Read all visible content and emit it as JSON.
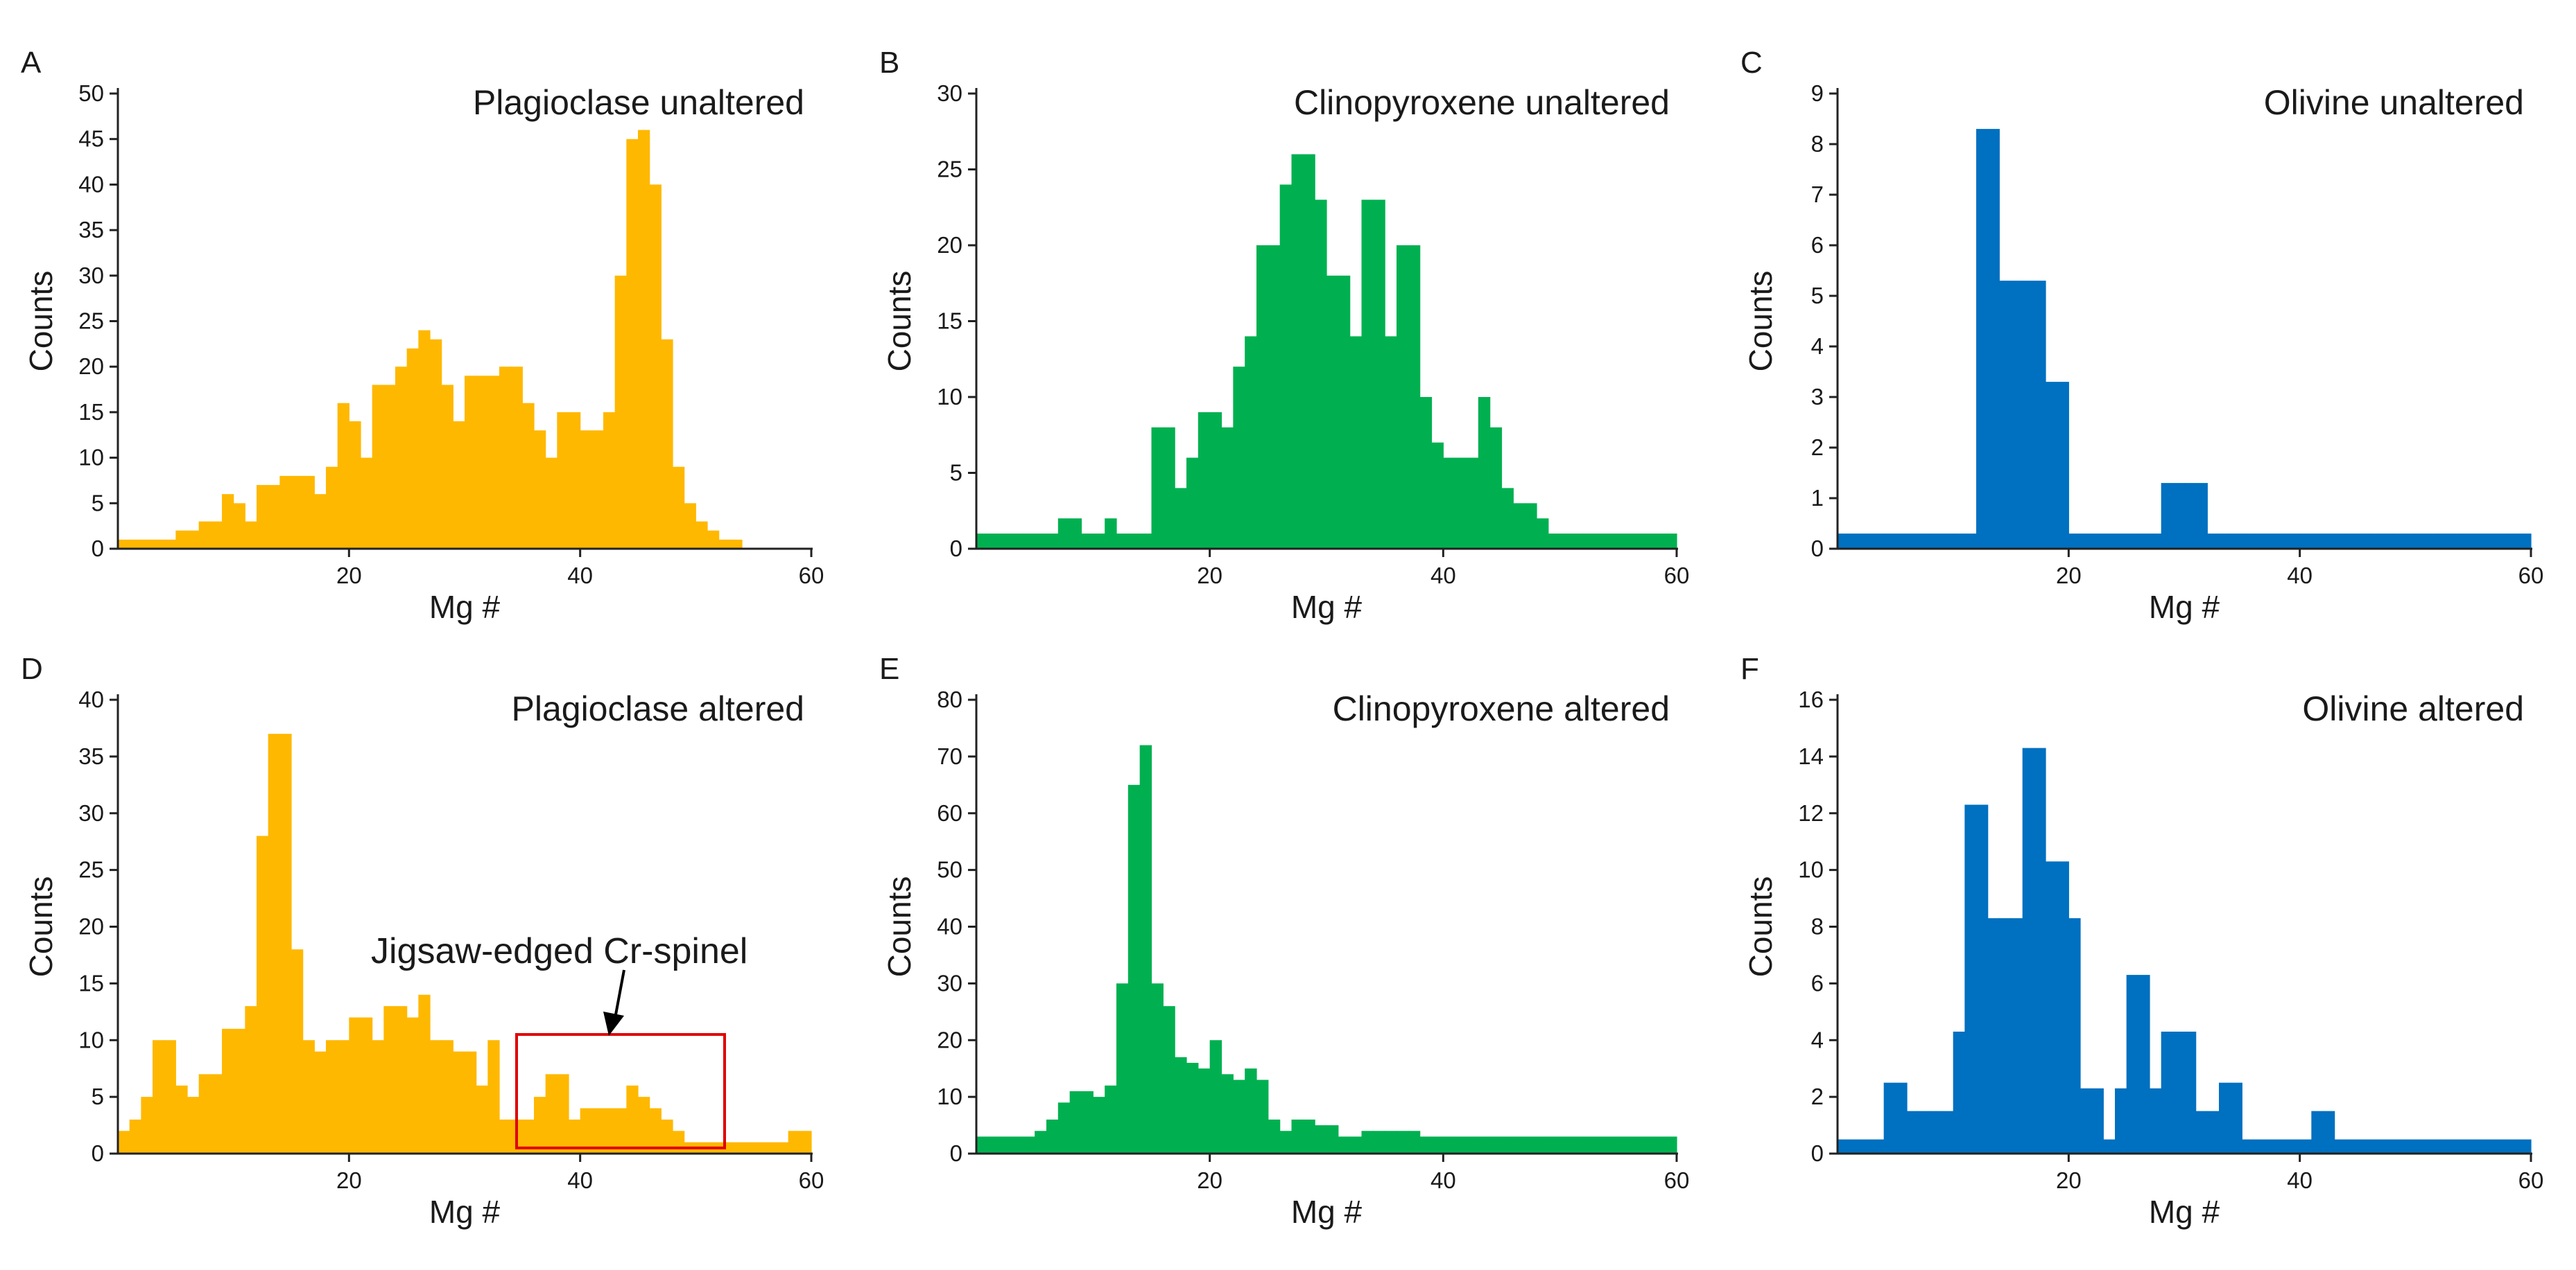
{
  "chart_data": [
    {
      "type": "bar",
      "panel": "A",
      "title": "Plagioclase unaltered",
      "xlabel": "Mg #",
      "ylabel": "Counts",
      "xlim": [
        0,
        60
      ],
      "ylim": [
        0,
        50
      ],
      "xticks": [
        20,
        40,
        60
      ],
      "yticks": [
        0,
        5,
        10,
        15,
        20,
        25,
        30,
        35,
        40,
        45,
        50
      ],
      "color": "#FFB800",
      "bin_width": 1,
      "values": [
        1,
        1,
        1,
        1,
        1,
        2,
        2,
        3,
        3,
        6,
        5,
        3,
        7,
        7,
        8,
        8,
        8,
        6,
        9,
        16,
        14,
        10,
        18,
        18,
        20,
        22,
        24,
        23,
        18,
        14,
        19,
        19,
        19,
        20,
        20,
        16,
        13,
        10,
        15,
        15,
        13,
        13,
        15,
        30,
        45,
        46,
        40,
        23,
        9,
        5,
        3,
        2,
        1,
        1
      ]
    },
    {
      "type": "bar",
      "panel": "B",
      "title": "Clinopyroxene unaltered",
      "xlabel": "Mg #",
      "ylabel": "Counts",
      "xlim": [
        0,
        60
      ],
      "ylim": [
        0,
        30
      ],
      "xticks": [
        20,
        40,
        60
      ],
      "yticks": [
        0,
        5,
        10,
        15,
        20,
        25,
        30
      ],
      "color": "#00B050",
      "bin_width": 1,
      "values": [
        1,
        1,
        1,
        1,
        1,
        1,
        1,
        2,
        2,
        1,
        1,
        2,
        1,
        1,
        1,
        8,
        8,
        4,
        6,
        9,
        9,
        8,
        12,
        14,
        20,
        20,
        24,
        26,
        26,
        23,
        18,
        18,
        14,
        23,
        23,
        14,
        20,
        20,
        10,
        7,
        6,
        6,
        6,
        10,
        8,
        4,
        3,
        3,
        2,
        1,
        1,
        1,
        1,
        1,
        1,
        1,
        1,
        1,
        1,
        1
      ]
    },
    {
      "type": "bar",
      "panel": "C",
      "title": "Olivine unaltered",
      "xlabel": "Mg #",
      "ylabel": "Counts",
      "xlim": [
        0,
        60
      ],
      "ylim": [
        0,
        9
      ],
      "xticks": [
        20,
        40,
        60
      ],
      "yticks": [
        0,
        1,
        2,
        3,
        4,
        5,
        6,
        7,
        8,
        9
      ],
      "color": "#0070C0",
      "bin_width": 2,
      "values": [
        0.3,
        0.3,
        0.3,
        0.3,
        0.3,
        0.3,
        8.3,
        5.3,
        5.3,
        3.3,
        0.3,
        0.3,
        0.3,
        0.3,
        1.3,
        1.3,
        0.3,
        0.3,
        0.3,
        0.3,
        0.3,
        0.3,
        0.3,
        0.3,
        0.3,
        0.3,
        0.3,
        0.3,
        0.3,
        0.3
      ]
    },
    {
      "type": "bar",
      "panel": "D",
      "title": "Plagioclase altered",
      "xlabel": "Mg #",
      "ylabel": "Counts",
      "xlim": [
        0,
        60
      ],
      "ylim": [
        0,
        40
      ],
      "xticks": [
        20,
        40,
        60
      ],
      "yticks": [
        0,
        5,
        10,
        15,
        20,
        25,
        30,
        35,
        40
      ],
      "color": "#FFB800",
      "bin_width": 1,
      "values": [
        2,
        3,
        5,
        10,
        10,
        6,
        5,
        7,
        7,
        11,
        11,
        13,
        28,
        37,
        37,
        18,
        10,
        9,
        10,
        10,
        12,
        12,
        10,
        13,
        13,
        12,
        14,
        10,
        10,
        9,
        9,
        6,
        10,
        3,
        3,
        3,
        5,
        7,
        7,
        3,
        4,
        4,
        4,
        4,
        6,
        5,
        4,
        3,
        2,
        1,
        1,
        1,
        1,
        1,
        1,
        1,
        1,
        1,
        2,
        2
      ]
    },
    {
      "type": "bar",
      "panel": "E",
      "title": "Clinopyroxene altered",
      "xlabel": "Mg #",
      "ylabel": "Counts",
      "xlim": [
        0,
        60
      ],
      "ylim": [
        0,
        80
      ],
      "xticks": [
        20,
        40,
        60
      ],
      "yticks": [
        0,
        10,
        20,
        30,
        40,
        50,
        60,
        70,
        80
      ],
      "color": "#00B050",
      "bin_width": 1,
      "values": [
        3,
        3,
        3,
        3,
        3,
        4,
        6,
        9,
        11,
        11,
        10,
        12,
        30,
        65,
        72,
        30,
        26,
        17,
        16,
        15,
        20,
        14,
        13,
        15,
        13,
        6,
        4,
        6,
        6,
        5,
        5,
        3,
        3,
        4,
        4,
        4,
        4,
        4,
        3,
        3,
        3,
        3,
        3,
        3,
        3,
        3,
        3,
        3,
        3,
        3,
        3,
        3,
        3,
        3,
        3,
        3,
        3,
        3,
        3,
        3
      ]
    },
    {
      "type": "bar",
      "panel": "F",
      "title": "Olivine altered",
      "xlabel": "Mg #",
      "ylabel": "Counts",
      "xlim": [
        0,
        60
      ],
      "ylim": [
        0,
        16
      ],
      "xticks": [
        20,
        40,
        60
      ],
      "yticks": [
        0,
        2,
        4,
        6,
        8,
        10,
        12,
        14,
        16
      ],
      "color": "#0070C0",
      "bin_width": 1,
      "values": [
        0.5,
        0.5,
        0.5,
        0.5,
        2.5,
        2.5,
        1.5,
        1.5,
        1.5,
        1.5,
        4.3,
        12.3,
        12.3,
        8.3,
        8.3,
        8.3,
        14.3,
        14.3,
        10.3,
        10.3,
        8.3,
        2.3,
        2.3,
        0.5,
        2.3,
        6.3,
        6.3,
        2.3,
        4.3,
        4.3,
        4.3,
        1.5,
        1.5,
        2.5,
        2.5,
        0.5,
        0.5,
        0.5,
        0.5,
        0.5,
        0.5,
        1.5,
        1.5,
        0.5,
        0.5,
        0.5,
        0.5,
        0.5,
        0.5,
        0.5,
        0.5,
        0.5,
        0.5,
        0.5,
        0.5,
        0.5,
        0.5,
        0.5,
        0.5,
        0.5
      ],
      "annotation": null
    }
  ],
  "annotations": {
    "jigsaw_label": "Jigsaw-edged Cr-spinel",
    "jigsaw_box_color": "#E00000",
    "jigsaw_range": [
      34.5,
      52.5
    ],
    "jigsaw_count_range": [
      0.5,
      10.5
    ]
  }
}
